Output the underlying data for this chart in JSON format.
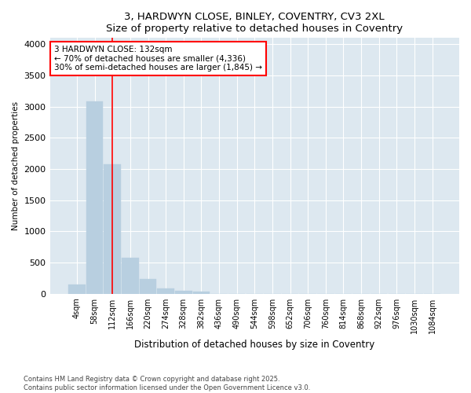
{
  "title": "3, HARDWYN CLOSE, BINLEY, COVENTRY, CV3 2XL",
  "subtitle": "Size of property relative to detached houses in Coventry",
  "xlabel": "Distribution of detached houses by size in Coventry",
  "ylabel": "Number of detached properties",
  "footer_line1": "Contains HM Land Registry data © Crown copyright and database right 2025.",
  "footer_line2": "Contains public sector information licensed under the Open Government Licence v3.0.",
  "categories": [
    "4sqm",
    "58sqm",
    "112sqm",
    "166sqm",
    "220sqm",
    "274sqm",
    "328sqm",
    "382sqm",
    "436sqm",
    "490sqm",
    "544sqm",
    "598sqm",
    "652sqm",
    "706sqm",
    "760sqm",
    "814sqm",
    "868sqm",
    "922sqm",
    "976sqm",
    "1030sqm",
    "1084sqm"
  ],
  "values": [
    150,
    3080,
    2080,
    580,
    230,
    85,
    45,
    30,
    0,
    0,
    0,
    0,
    0,
    0,
    0,
    0,
    0,
    0,
    0,
    0,
    0
  ],
  "bar_color": "#b8cfe0",
  "bar_edge_color": "#b8cfe0",
  "vline_color": "red",
  "vline_x_index": 1.975,
  "annotation_text": "3 HARDWYN CLOSE: 132sqm\n← 70% of detached houses are smaller (4,336)\n30% of semi-detached houses are larger (1,845) →",
  "annotation_box_color": "white",
  "annotation_box_edge": "red",
  "ylim": [
    0,
    4100
  ],
  "background_color": "#ffffff",
  "plot_bg_color": "#dde8f0",
  "grid_color": "#ffffff",
  "yticks": [
    0,
    500,
    1000,
    1500,
    2000,
    2500,
    3000,
    3500,
    4000
  ]
}
